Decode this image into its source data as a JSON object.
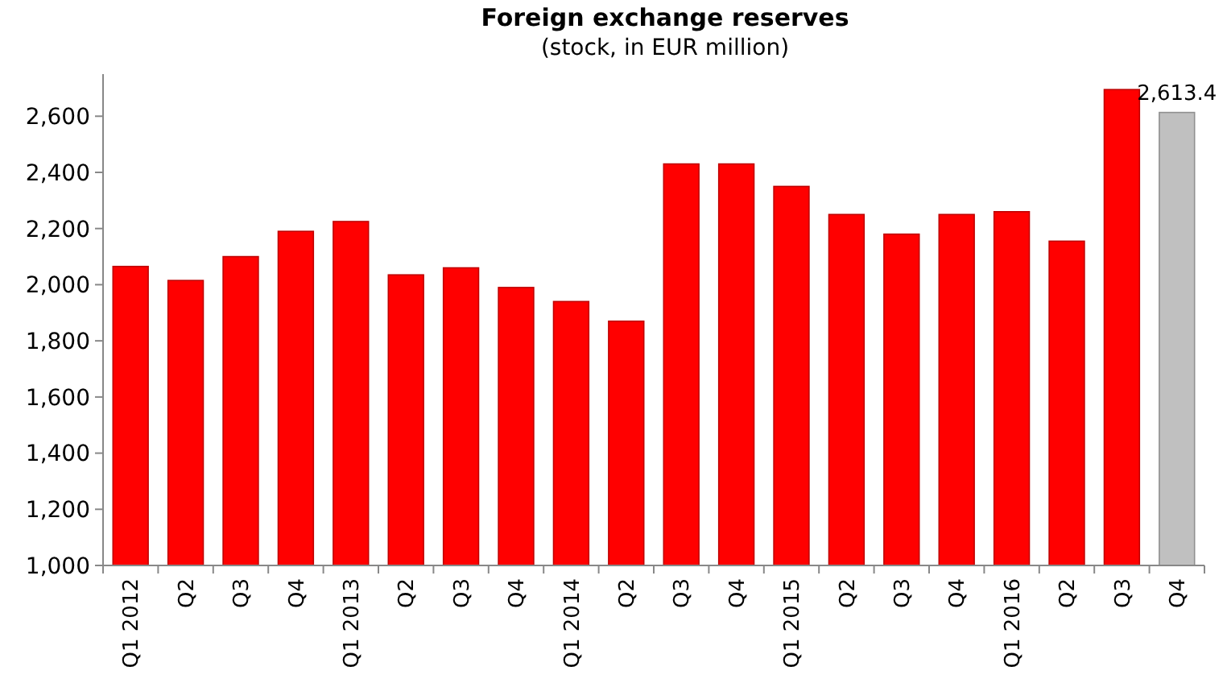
{
  "chart_data": {
    "type": "bar",
    "title": "Foreign exchange reserves",
    "subtitle": "(stock, in EUR million)",
    "categories": [
      "Q1 2012",
      "Q2",
      "Q3",
      "Q4",
      "Q1 2013",
      "Q2",
      "Q3",
      "Q4",
      "Q1 2014",
      "Q2",
      "Q3",
      "Q4",
      "Q1 2015",
      "Q2",
      "Q3",
      "Q4",
      "Q1 2016",
      "Q2",
      "Q3",
      "Q4"
    ],
    "values": [
      2065,
      2015,
      2100,
      2190,
      2225,
      2035,
      2060,
      1990,
      1940,
      1870,
      2430,
      2430,
      2350,
      2250,
      2180,
      2250,
      2260,
      2155,
      2695,
      2613.4
    ],
    "colors": [
      "#ff0000",
      "#ff0000",
      "#ff0000",
      "#ff0000",
      "#ff0000",
      "#ff0000",
      "#ff0000",
      "#ff0000",
      "#ff0000",
      "#ff0000",
      "#ff0000",
      "#ff0000",
      "#ff0000",
      "#ff0000",
      "#ff0000",
      "#ff0000",
      "#ff0000",
      "#ff0000",
      "#ff0000",
      "#c0c0c0"
    ],
    "value_labels": [
      null,
      null,
      null,
      null,
      null,
      null,
      null,
      null,
      null,
      null,
      null,
      null,
      null,
      null,
      null,
      null,
      null,
      null,
      null,
      "2,613.4"
    ],
    "ylim": [
      1000,
      2750
    ],
    "yticks": [
      {
        "value": 1000,
        "label": "1,000"
      },
      {
        "value": 1200,
        "label": "1,200"
      },
      {
        "value": 1400,
        "label": "1,400"
      },
      {
        "value": 1600,
        "label": "1,600"
      },
      {
        "value": 1800,
        "label": "1,800"
      },
      {
        "value": 2000,
        "label": "2,000"
      },
      {
        "value": 2200,
        "label": "2,200"
      },
      {
        "value": 2400,
        "label": "2,400"
      },
      {
        "value": 2600,
        "label": "2,600"
      }
    ],
    "grid": false
  }
}
